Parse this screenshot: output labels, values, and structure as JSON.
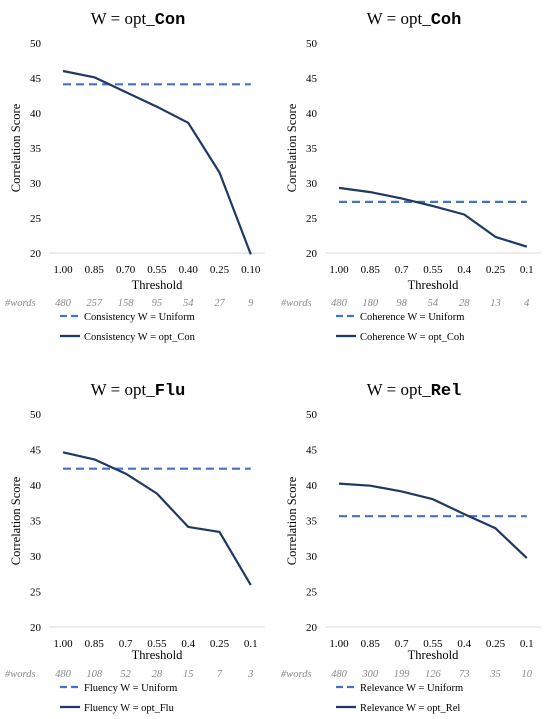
{
  "chart_data": [
    {
      "type": "line",
      "title_prefix": "W = opt_",
      "title_code": "Con",
      "xlabel": "Threshold",
      "ylabel": "Correlation Score",
      "categories": [
        "1.00",
        "0.85",
        "0.70",
        "0.55",
        "0.40",
        "0.25",
        "0.10"
      ],
      "words_label": "#words",
      "words": [
        "480",
        "257",
        "158",
        "95",
        "54",
        "27",
        "9"
      ],
      "ylim": [
        20,
        50
      ],
      "yticks": [
        20,
        25,
        30,
        35,
        40,
        45,
        50
      ],
      "series": [
        {
          "name": "Consistency W = Uniform",
          "style": "dashed",
          "color": "#4472C4",
          "values": [
            44.1,
            44.1,
            44.1,
            44.1,
            44.1,
            44.1,
            44.1
          ]
        },
        {
          "name": "Consistency W = opt_Con",
          "style": "solid",
          "color": "#1F3864",
          "values": [
            46.0,
            45.1,
            43.0,
            40.9,
            38.6,
            31.5,
            19.8
          ]
        }
      ]
    },
    {
      "type": "line",
      "title_prefix": "W = opt_",
      "title_code": "Coh",
      "xlabel": "Threshold",
      "ylabel": "Correlation Score",
      "categories": [
        "1.00",
        "0.85",
        "0.7",
        "0.55",
        "0.4",
        "0.25",
        "0.1"
      ],
      "words_label": "#words",
      "words": [
        "480",
        "180",
        "98",
        "54",
        "28",
        "13",
        "4"
      ],
      "ylim": [
        20,
        50
      ],
      "yticks": [
        20,
        25,
        30,
        35,
        40,
        45,
        50
      ],
      "series": [
        {
          "name": "Coherence W = Uniform",
          "style": "dashed",
          "color": "#4472C4",
          "values": [
            27.3,
            27.3,
            27.3,
            27.3,
            27.3,
            27.3,
            27.3
          ]
        },
        {
          "name": "Coherence W = opt_Coh",
          "style": "solid",
          "color": "#1F3864",
          "values": [
            29.3,
            28.7,
            27.8,
            26.7,
            25.5,
            22.3,
            20.9
          ]
        }
      ]
    },
    {
      "type": "line",
      "title_prefix": "W = opt_",
      "title_code": "Flu",
      "xlabel": "Threshold",
      "ylabel": "Correlation Score",
      "categories": [
        "1.00",
        "0.85",
        "0.7",
        "0.55",
        "0.4",
        "0.25",
        "0.1"
      ],
      "words_label": "#words",
      "words": [
        "480",
        "108",
        "52",
        "28",
        "15",
        "7",
        "3"
      ],
      "ylim": [
        20,
        50
      ],
      "yticks": [
        20,
        25,
        30,
        35,
        40,
        45,
        50
      ],
      "series": [
        {
          "name": "Fluency W = Uniform",
          "style": "dashed",
          "color": "#4472C4",
          "values": [
            42.3,
            42.3,
            42.3,
            42.3,
            42.3,
            42.3,
            42.3
          ]
        },
        {
          "name": "Fluency W = opt_Flu",
          "style": "solid",
          "color": "#1F3864",
          "values": [
            44.6,
            43.6,
            41.6,
            38.8,
            34.1,
            33.4,
            25.9
          ]
        }
      ]
    },
    {
      "type": "line",
      "title_prefix": "W = opt_",
      "title_code": "Rel",
      "xlabel": "Threshold",
      "ylabel": "Correlation Score",
      "categories": [
        "1.00",
        "0.85",
        "0.7",
        "0.55",
        "0.4",
        "0.25",
        "0.1"
      ],
      "words_label": "#words",
      "words": [
        "480",
        "300",
        "199",
        "126",
        "73",
        "35",
        "10"
      ],
      "ylim": [
        20,
        50
      ],
      "yticks": [
        20,
        25,
        30,
        35,
        40,
        45,
        50
      ],
      "series": [
        {
          "name": "Relevance W = Uniform",
          "style": "dashed",
          "color": "#4472C4",
          "values": [
            35.6,
            35.6,
            35.6,
            35.6,
            35.6,
            35.6,
            35.6
          ]
        },
        {
          "name": "Relevance W = opt_Rel",
          "style": "solid",
          "color": "#1F3864",
          "values": [
            40.2,
            39.9,
            39.1,
            38.0,
            35.9,
            33.9,
            29.7
          ]
        }
      ]
    }
  ]
}
